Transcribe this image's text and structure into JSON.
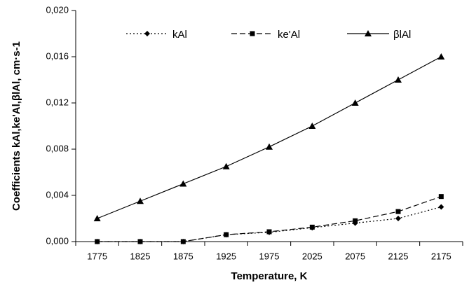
{
  "chart_data": {
    "type": "line",
    "x_label": "Temperature, K",
    "y_label": "Coefficients kAl,ke'Al,βlAl, cm·s-1",
    "categories": [
      "1775",
      "1825",
      "1875",
      "1925",
      "1975",
      "2025",
      "2075",
      "2125",
      "2175"
    ],
    "series": [
      {
        "name": "kAl",
        "color": "#000000",
        "marker": "diamond",
        "dash": "2,3",
        "values": [
          0,
          0,
          0,
          0.0006,
          0.0008,
          0.0012,
          0.0016,
          0.002,
          0.003
        ]
      },
      {
        "name": "ke'Al",
        "color": "#000000",
        "marker": "square",
        "dash": "8,4",
        "values": [
          0,
          0,
          0,
          0.0006,
          0.00085,
          0.00125,
          0.0018,
          0.0026,
          0.0039
        ]
      },
      {
        "name": "βlAl",
        "color": "#000000",
        "marker": "triangle",
        "dash": "none",
        "values": [
          0.002,
          0.0035,
          0.005,
          0.0065,
          0.0082,
          0.01,
          0.012,
          0.014,
          0.016
        ]
      }
    ],
    "ylim": [
      0,
      0.02
    ],
    "yticks": [
      {
        "value": 0,
        "label": "0,000"
      },
      {
        "value": 0.004,
        "label": "0,004"
      },
      {
        "value": 0.008,
        "label": "0,008"
      },
      {
        "value": 0.012,
        "label": "0,012"
      },
      {
        "value": 0.016,
        "label": "0,016"
      },
      {
        "value": 0.02,
        "label": "0,020"
      }
    ],
    "grid": false
  }
}
